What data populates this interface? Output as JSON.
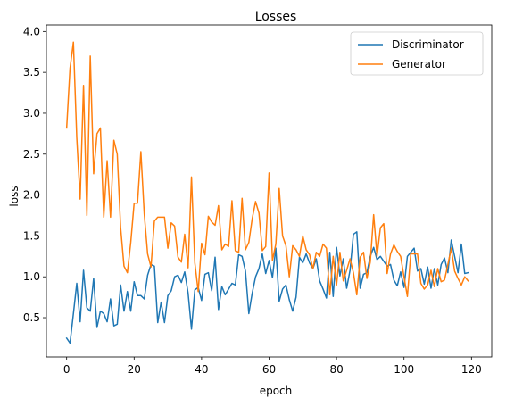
{
  "chart_data": {
    "type": "line",
    "title": "Losses",
    "xlabel": "epoch",
    "ylabel": "loss",
    "xlim": [
      -6,
      126
    ],
    "ylim": [
      0.02,
      4.08
    ],
    "xticks": [
      0,
      20,
      40,
      60,
      80,
      100,
      120
    ],
    "yticks": [
      0.5,
      1.0,
      1.5,
      2.0,
      2.5,
      3.0,
      3.5,
      4.0
    ],
    "ytick_labels": [
      "0.5",
      "1.0",
      "1.5",
      "2.0",
      "2.5",
      "3.0",
      "3.5",
      "4.0"
    ],
    "grid": false,
    "legend_position": "top-right",
    "series": [
      {
        "name": "Discriminator",
        "color": "#1f77b4",
        "values": [
          0.25,
          0.19,
          0.55,
          0.92,
          0.45,
          1.08,
          0.62,
          0.58,
          0.98,
          0.38,
          0.58,
          0.55,
          0.45,
          0.73,
          0.4,
          0.42,
          0.9,
          0.58,
          0.82,
          0.58,
          0.94,
          0.77,
          0.77,
          0.73,
          1.02,
          1.15,
          1.13,
          0.44,
          0.69,
          0.44,
          0.77,
          0.83,
          1.0,
          1.02,
          0.93,
          1.06,
          0.8,
          0.36,
          0.84,
          0.87,
          0.71,
          1.03,
          1.05,
          0.83,
          1.24,
          0.6,
          0.88,
          0.78,
          0.85,
          0.92,
          0.9,
          1.27,
          1.25,
          1.07,
          0.55,
          0.8,
          1.0,
          1.1,
          1.28,
          1.04,
          1.2,
          0.99,
          1.35,
          0.7,
          0.85,
          0.9,
          0.72,
          0.58,
          0.75,
          1.24,
          1.17,
          1.28,
          1.17,
          1.1,
          1.22,
          0.95,
          0.85,
          0.74,
          1.3,
          0.76,
          1.36,
          1.01,
          1.22,
          0.86,
          1.08,
          1.52,
          1.55,
          0.86,
          1.03,
          1.05,
          1.25,
          1.36,
          1.21,
          1.25,
          1.19,
          1.13,
          1.15,
          0.96,
          0.89,
          1.06,
          0.87,
          1.25,
          1.3,
          1.35,
          1.07,
          1.1,
          0.91,
          1.12,
          0.86,
          1.1,
          0.9,
          1.15,
          1.23,
          1.05,
          1.45,
          1.25,
          1.05,
          1.4,
          1.04,
          1.05
        ]
      },
      {
        "name": "Generator",
        "color": "#ff7f0e",
        "values": [
          2.82,
          3.55,
          3.87,
          2.7,
          1.95,
          3.34,
          1.75,
          3.7,
          2.26,
          2.75,
          2.82,
          1.73,
          2.42,
          1.73,
          2.67,
          2.5,
          1.6,
          1.13,
          1.05,
          1.42,
          1.9,
          1.9,
          2.53,
          1.77,
          1.28,
          1.12,
          1.68,
          1.73,
          1.73,
          1.73,
          1.35,
          1.66,
          1.62,
          1.24,
          1.18,
          1.52,
          1.11,
          2.22,
          1.17,
          0.82,
          1.41,
          1.27,
          1.74,
          1.67,
          1.63,
          1.87,
          1.33,
          1.4,
          1.37,
          1.93,
          1.32,
          1.3,
          1.96,
          1.33,
          1.42,
          1.71,
          1.92,
          1.78,
          1.32,
          1.37,
          2.27,
          1.2,
          1.4,
          2.08,
          1.5,
          1.38,
          1.0,
          1.38,
          1.33,
          1.25,
          1.5,
          1.33,
          1.27,
          1.1,
          1.3,
          1.25,
          1.4,
          1.35,
          0.78,
          1.25,
          0.9,
          1.3,
          0.95,
          1.08,
          1.22,
          1.05,
          0.78,
          1.24,
          1.3,
          0.98,
          1.18,
          1.76,
          1.25,
          1.6,
          1.65,
          1.04,
          1.28,
          1.39,
          1.31,
          1.25,
          1.0,
          0.76,
          1.28,
          1.28,
          1.28,
          0.92,
          0.85,
          0.9,
          1.08,
          0.88,
          1.1,
          0.94,
          0.96,
          1.15,
          1.35,
          1.07,
          0.98,
          0.9,
          1.0,
          0.95
        ]
      }
    ]
  }
}
